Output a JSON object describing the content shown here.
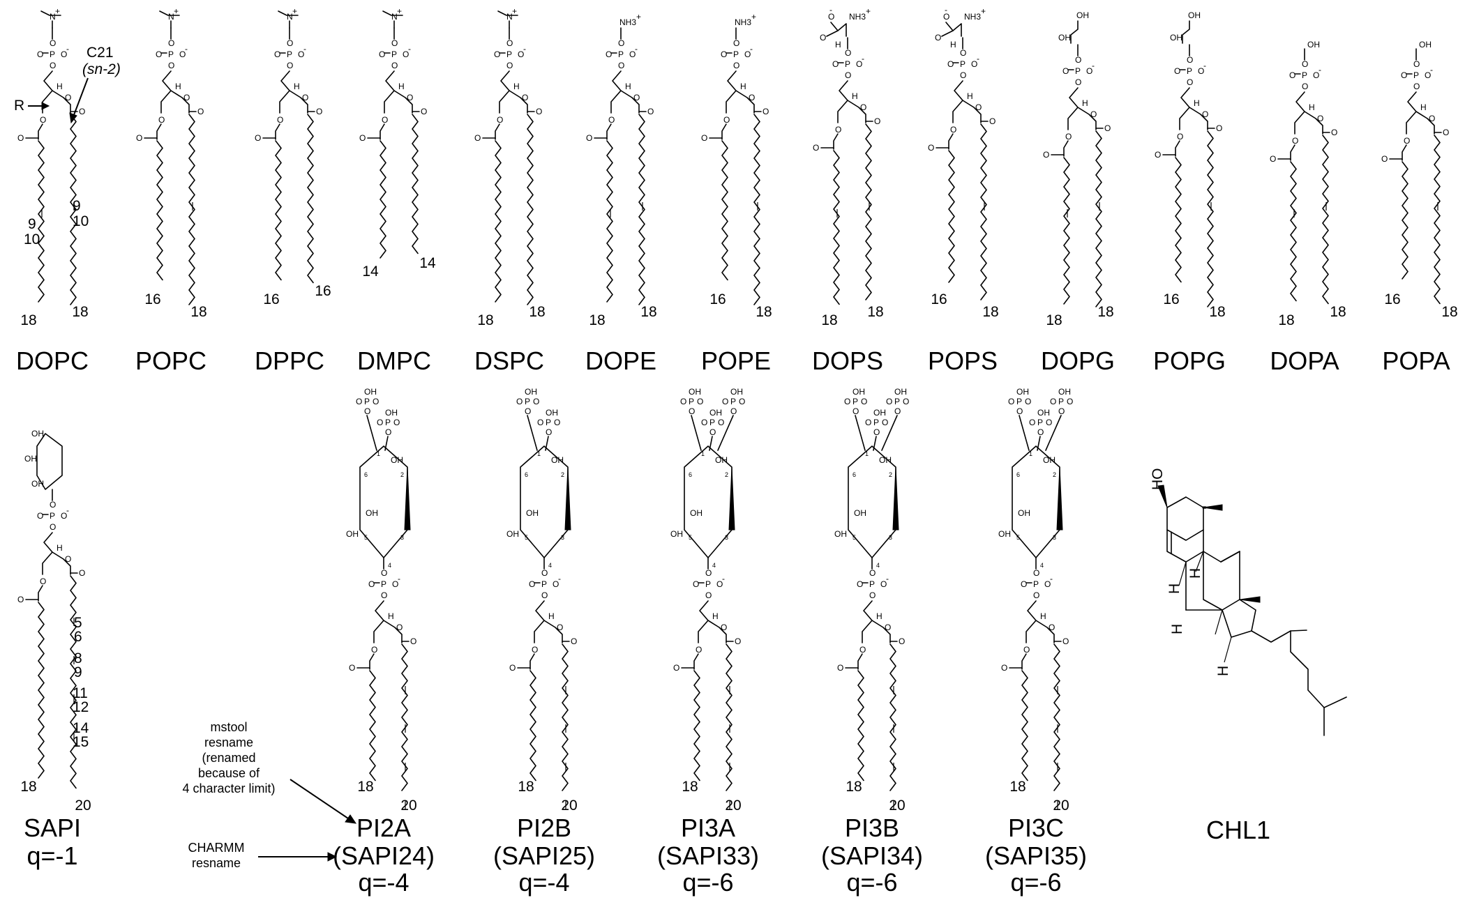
{
  "figure": {
    "top_row": [
      {
        "name": "DOPC",
        "sn1_end": "18",
        "sn2_end": "18",
        "double_bonds": [
          {
            "upper": "9",
            "lower": "10"
          },
          {
            "upper": "9",
            "lower": "10"
          }
        ],
        "c21_label": "C21",
        "c21_sub": "(sn-2)",
        "r_label": "R"
      },
      {
        "name": "POPC",
        "sn1_end": "16",
        "sn2_end": "18"
      },
      {
        "name": "DPPC",
        "sn1_end": "16",
        "sn2_end": "16"
      },
      {
        "name": "DMPC",
        "sn1_end": "14",
        "sn2_end": "14"
      },
      {
        "name": "DSPC",
        "sn1_end": "18",
        "sn2_end": "18"
      },
      {
        "name": "DOPE",
        "sn1_end": "18",
        "sn2_end": "18"
      },
      {
        "name": "POPE",
        "sn1_end": "16",
        "sn2_end": "18"
      },
      {
        "name": "DOPS",
        "sn1_end": "18",
        "sn2_end": "18"
      },
      {
        "name": "POPS",
        "sn1_end": "16",
        "sn2_end": "18"
      },
      {
        "name": "DOPG",
        "sn1_end": "18",
        "sn2_end": "18"
      },
      {
        "name": "POPG",
        "sn1_end": "16",
        "sn2_end": "18"
      },
      {
        "name": "DOPA",
        "sn1_end": "18",
        "sn2_end": "18"
      },
      {
        "name": "POPA",
        "sn1_end": "16",
        "sn2_end": "18"
      }
    ],
    "bottom_row": [
      {
        "name": "SAPI",
        "sub1": "q=-1",
        "sub2": "",
        "sn1_end": "18",
        "sn2_end": "20",
        "db_labels": [
          "5",
          "6",
          "8",
          "9",
          "11",
          "12",
          "14",
          "15"
        ]
      },
      {
        "name": "PI2A",
        "sub1": "(SAPI24)",
        "sub2": "q=-4",
        "sn1_end": "18",
        "sn2_end": "20"
      },
      {
        "name": "PI2B",
        "sub1": "(SAPI25)",
        "sub2": "q=-4",
        "sn1_end": "18",
        "sn2_end": "20"
      },
      {
        "name": "PI3A",
        "sub1": "(SAPI33)",
        "sub2": "q=-6",
        "sn1_end": "18",
        "sn2_end": "20"
      },
      {
        "name": "PI3B",
        "sub1": "(SAPI34)",
        "sub2": "q=-6",
        "sn1_end": "18",
        "sn2_end": "20"
      },
      {
        "name": "PI3C",
        "sub1": "(SAPI35)",
        "sub2": "q=-6",
        "sn1_end": "18",
        "sn2_end": "20"
      }
    ],
    "cholesterol": {
      "name": "CHL1",
      "oh": "HO",
      "h": "H"
    },
    "notes": {
      "mstool": [
        "mstool",
        "resname",
        "(renamed",
        "because of",
        "4 character limit)"
      ],
      "charmm": [
        "CHARMM",
        "resname"
      ]
    },
    "atoms": {
      "N": "N",
      "P": "P",
      "O": "O",
      "H": "H",
      "NH3": "NH3",
      "OH": "OH",
      "plus": "+",
      "minus": "-",
      "ring_positions": [
        "1",
        "2",
        "3",
        "4",
        "5",
        "6"
      ]
    }
  }
}
